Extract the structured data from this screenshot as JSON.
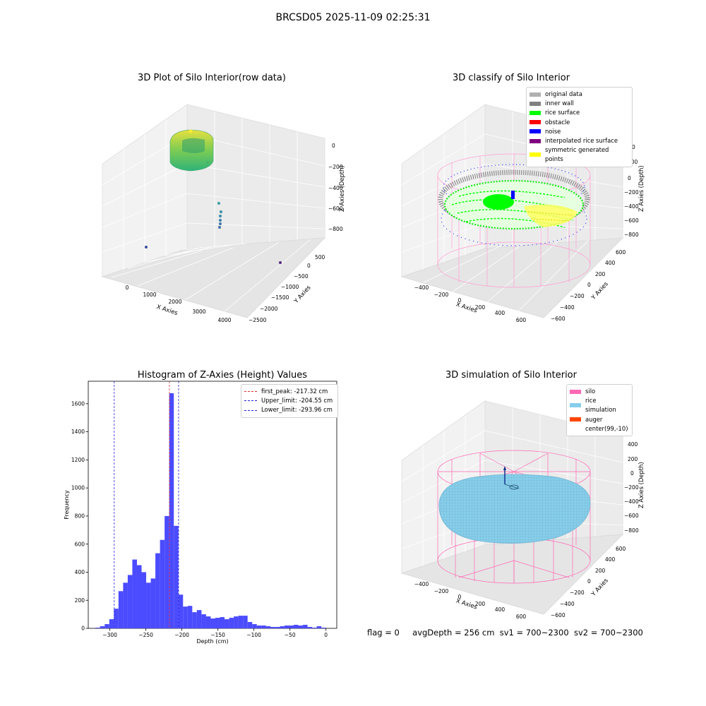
{
  "figure": {
    "title": "BRCSD05 2025-11-09 02:25:31"
  },
  "status": {
    "flag": "flag = 0",
    "avg_depth": "avgDepth = 256 cm",
    "sv1": "sv1 = 700~2300",
    "sv2": "sv2 = 700~2300"
  },
  "colors": {
    "hist_bar": "#4b4bff",
    "peak_line": "#e03030",
    "limit_line": "#2020e0",
    "silo": "#ff69b4",
    "rice_simulation": "#87ceeb",
    "auger": "#ff4500",
    "original_data": "#b0b0b0",
    "inner_wall": "#808080",
    "rice_surface": "#00ff00",
    "obstacle": "#ff0000",
    "noise": "#0000ff",
    "interpolated_rice_surface": "#800080",
    "symmetric_generated_points": "#ffff00"
  },
  "chart_data": [
    {
      "type": "scatter",
      "title": "3D Plot of Silo Interior(row data)",
      "xlabel": "X Axies",
      "ylabel": "Y Axies",
      "zlabel": "Z Axies (Depth)",
      "x_ticks": [
        "0",
        "1000",
        "2000",
        "3000",
        "4000"
      ],
      "y_ticks": [
        "500",
        "0",
        "−500",
        "−1000",
        "−1500",
        "−2000",
        "−2500"
      ],
      "z_ticks": [
        "0",
        "−200",
        "−400",
        "−600",
        "−800"
      ],
      "note": "dense ring of points near origin plus a few outlier points"
    },
    {
      "type": "scatter",
      "title": "3D classify of Silo Interior",
      "xlabel": "X Axies",
      "ylabel": "Y Axies",
      "zlabel": "Z Axies (Depth)",
      "x_ticks": [
        "−400",
        "−200",
        "0",
        "200",
        "400",
        "600"
      ],
      "y_ticks": [
        "600",
        "400",
        "200",
        "0",
        "−200",
        "−400",
        "−600"
      ],
      "z_ticks": [
        "200",
        "0",
        "−200",
        "−400",
        "−600",
        "−800"
      ],
      "z_top_tick_partial": "0",
      "legend": [
        {
          "label": "original data",
          "color": "#b0b0b0"
        },
        {
          "label": "inner wall",
          "color": "#808080"
        },
        {
          "label": "rice surface",
          "color": "#00ff00"
        },
        {
          "label": "obstacle",
          "color": "#ff0000"
        },
        {
          "label": "noise",
          "color": "#0000ff"
        },
        {
          "label": "interpolated rice surface",
          "color": "#800080"
        },
        {
          "label": "symmetric generated points",
          "color": "#ffff00"
        }
      ]
    },
    {
      "type": "bar",
      "title": "Histogram of Z-Axies (Height) Values",
      "xlabel": "Depth (cm)",
      "ylabel": "Frequency",
      "xlim": [
        -330,
        15
      ],
      "ylim": [
        0,
        1760
      ],
      "x_ticks": [
        -300,
        -250,
        -200,
        -150,
        -100,
        -50,
        0
      ],
      "x_tick_labels": [
        "−300",
        "−250",
        "−200",
        "−150",
        "−100",
        "−50",
        "0"
      ],
      "y_ticks": [
        0,
        200,
        400,
        600,
        800,
        1000,
        1200,
        1400,
        1600
      ],
      "bin_start": -320,
      "bin_width": 6.4,
      "values": [
        5,
        15,
        30,
        65,
        140,
        265,
        325,
        380,
        490,
        450,
        400,
        325,
        355,
        535,
        630,
        800,
        1675,
        730,
        240,
        155,
        160,
        115,
        130,
        100,
        85,
        70,
        75,
        80,
        65,
        75,
        85,
        90,
        90,
        45,
        30,
        20,
        20,
        15,
        10,
        10,
        15,
        20,
        20,
        25,
        20,
        25,
        10,
        5,
        15,
        5
      ],
      "vlines": [
        {
          "label": "first_peak: -217.32 cm",
          "x": -217.32,
          "color": "#e03030"
        },
        {
          "label": "Upper_limit: -204.55 cm",
          "x": -204.55,
          "color": "#2020e0"
        },
        {
          "label": "Lower_limit: -293.96 cm",
          "x": -293.96,
          "color": "#2020e0"
        }
      ],
      "legend_position": "top-right"
    },
    {
      "type": "scatter",
      "title": "3D simulation of Silo Interior",
      "xlabel": "X Axies",
      "ylabel": "Y Axies",
      "zlabel": "Z Axies (Depth)",
      "x_ticks": [
        "−400",
        "−200",
        "0",
        "200",
        "400",
        "600"
      ],
      "y_ticks": [
        "600",
        "400",
        "200",
        "0",
        "−200",
        "−400",
        "−600"
      ],
      "z_ticks": [
        "400",
        "200",
        "0",
        "−200",
        "−400",
        "−600",
        "−800"
      ],
      "legend": [
        {
          "label": "silo",
          "color": "#ff69b4"
        },
        {
          "label": "rice simulation",
          "color": "#87ceeb"
        },
        {
          "label": "auger",
          "color": "#ff4500"
        },
        {
          "label": "center(99,-10)",
          "color": ""
        }
      ]
    }
  ]
}
